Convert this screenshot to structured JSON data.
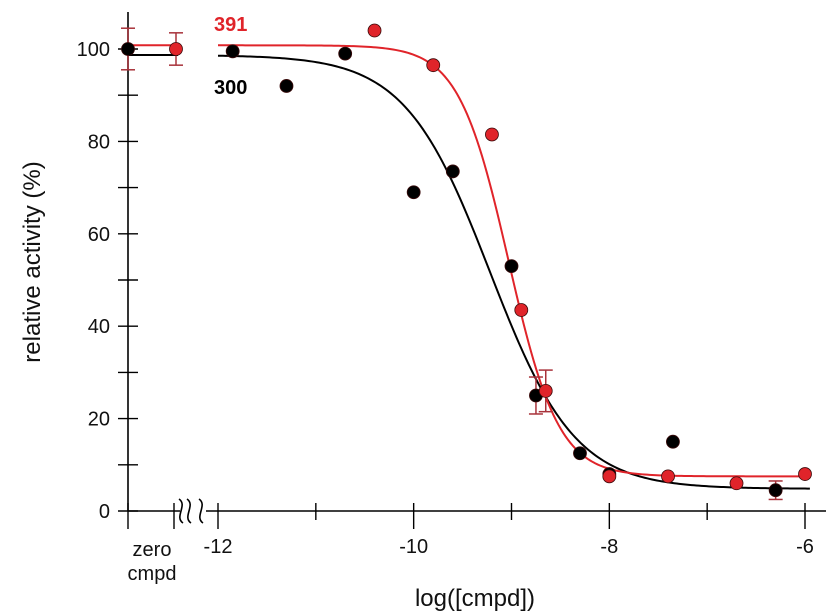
{
  "chart_data": {
    "type": "scatter",
    "xlabel": "log([cmpd])",
    "ylabel": "relative activity (%)",
    "xlim": [
      -12,
      -6
    ],
    "ylim": [
      0,
      100
    ],
    "x_ticks": [
      -12,
      -10,
      -8,
      -6
    ],
    "x_tick_labels": [
      "-12",
      "-10",
      "-8",
      "-6"
    ],
    "y_ticks": [
      0,
      20,
      40,
      60,
      80,
      100
    ],
    "y_tick_labels": [
      "0",
      "20",
      "40",
      "60",
      "80",
      "100"
    ],
    "zero_label_line1": "zero",
    "zero_label_line2": "cmpd",
    "axis_break": true,
    "grid": false,
    "series": [
      {
        "name": "300",
        "color": "#000000",
        "zero_cmpd": {
          "y": 100,
          "err": 4.5
        },
        "points": [
          {
            "x": -11.85,
            "y": 99.5
          },
          {
            "x": -11.3,
            "y": 92
          },
          {
            "x": -10.7,
            "y": 99
          },
          {
            "x": -10.0,
            "y": 69
          },
          {
            "x": -9.6,
            "y": 73.5
          },
          {
            "x": -9.0,
            "y": 53
          },
          {
            "x": -8.75,
            "y": 25,
            "err": 4
          },
          {
            "x": -8.3,
            "y": 12.5
          },
          {
            "x": -8.0,
            "y": 8
          },
          {
            "x": -7.35,
            "y": 15
          },
          {
            "x": -6.3,
            "y": 4.5,
            "err": 2
          }
        ],
        "fit": {
          "top": 98.7,
          "bottom": 4.8,
          "logIC50": -9.22,
          "hill": 1.0
        }
      },
      {
        "name": "391",
        "color": "#e0242a",
        "zero_cmpd": {
          "y": 100,
          "err": 3.5
        },
        "points": [
          {
            "x": -10.4,
            "y": 104
          },
          {
            "x": -9.8,
            "y": 96.5
          },
          {
            "x": -9.2,
            "y": 81.5
          },
          {
            "x": -8.9,
            "y": 43.5
          },
          {
            "x": -8.65,
            "y": 26,
            "err": 4.5
          },
          {
            "x": -8.0,
            "y": 7.5
          },
          {
            "x": -7.4,
            "y": 7.5
          },
          {
            "x": -6.7,
            "y": 6
          },
          {
            "x": -6.0,
            "y": 8
          }
        ],
        "fit": {
          "top": 100.8,
          "bottom": 7.5,
          "logIC50": -9.03,
          "hill": 1.7
        }
      }
    ]
  }
}
